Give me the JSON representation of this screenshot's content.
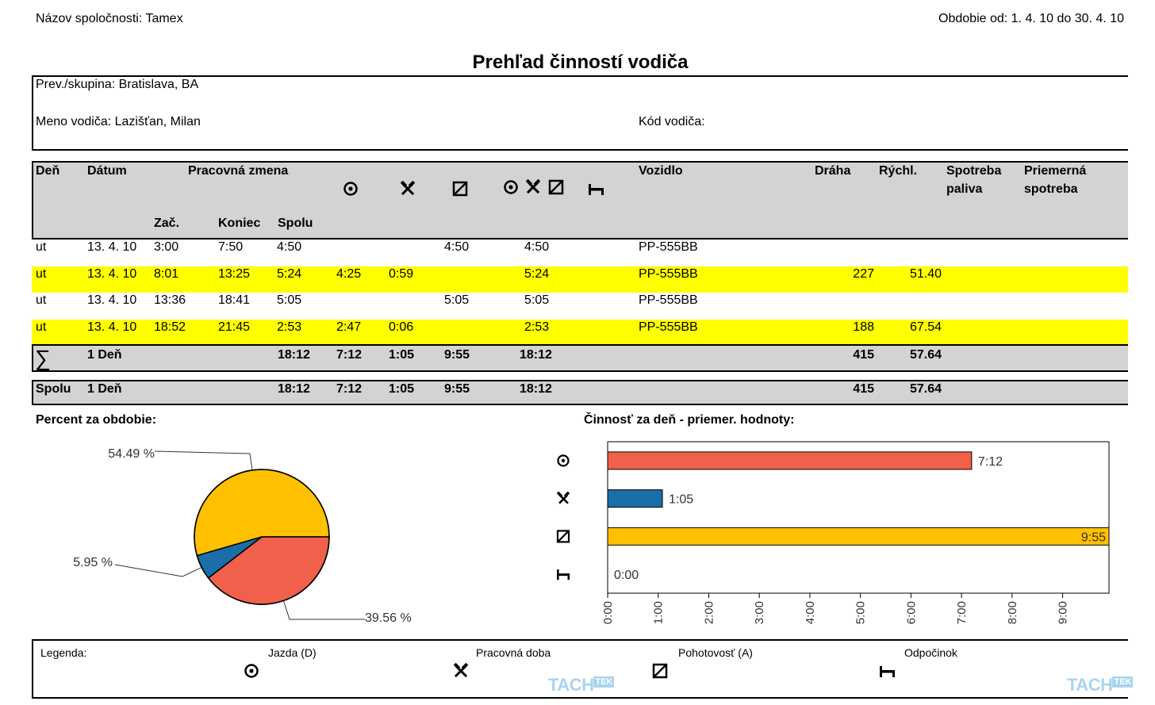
{
  "header": {
    "company": "Názov spoločnosti: Tamex",
    "period": "Obdobie od: 1. 4. 10 do 30. 4. 10",
    "title": "Prehľad činností vodiča"
  },
  "info": {
    "group": "Prev./skupina: Bratislava, BA",
    "driver_name": "Meno vodiča: Lazišťan, Milan",
    "driver_code": "Kód vodiča:"
  },
  "table": {
    "headers": {
      "den": "Deň",
      "datum": "Dátum",
      "shift": "Pracovná zmena",
      "zac": "Zač.",
      "koniec": "Koniec",
      "spolu": "Spolu",
      "vozidlo": "Vozidlo",
      "draha": "Dráha",
      "rychl": "Rýchl.",
      "spotreba_1": "Spotreba",
      "spotreba_2": "paliva",
      "priem_1": "Priemerná",
      "priem_2": "spotreba"
    },
    "rows": [
      {
        "den": "ut",
        "datum": "13. 4. 10",
        "zac": "3:00",
        "koniec": "7:50",
        "spolu": "4:50",
        "drive": "",
        "work": "",
        "avail": "4:50",
        "total": "4:50",
        "vehicle": "PP-555BB",
        "draha": "",
        "rychl": ""
      },
      {
        "den": "ut",
        "datum": "13. 4. 10",
        "zac": "8:01",
        "koniec": "13:25",
        "spolu": "5:24",
        "drive": "4:25",
        "work": "0:59",
        "avail": "",
        "total": "5:24",
        "vehicle": "PP-555BB",
        "draha": "227",
        "rychl": "51.40"
      },
      {
        "den": "ut",
        "datum": "13. 4. 10",
        "zac": "13:36",
        "koniec": "18:41",
        "spolu": "5:05",
        "drive": "",
        "work": "",
        "avail": "5:05",
        "total": "5:05",
        "vehicle": "PP-555BB",
        "draha": "",
        "rychl": ""
      },
      {
        "den": "ut",
        "datum": "13. 4. 10",
        "zac": "18:52",
        "koniec": "21:45",
        "spolu": "2:53",
        "drive": "2:47",
        "work": "0:06",
        "avail": "",
        "total": "2:53",
        "vehicle": "PP-555BB",
        "draha": "188",
        "rychl": "67.54"
      }
    ],
    "sum_row": {
      "symbol": "∑",
      "days": "1 Deň",
      "spolu": "18:12",
      "drive": "7:12",
      "work": "1:05",
      "avail": "9:55",
      "total": "18:12",
      "draha": "415",
      "rychl": "57.64"
    },
    "total_row": {
      "label": "Spolu",
      "days": "1 Deň",
      "spolu": "18:12",
      "drive": "7:12",
      "work": "1:05",
      "avail": "9:55",
      "total": "18:12",
      "draha": "415",
      "rychl": "57.64"
    }
  },
  "charts_titles": {
    "pie": "Percent za obdobie:",
    "bar": "Činnosť za deň - priemer. hodnoty:"
  },
  "chart_data": [
    {
      "type": "pie",
      "title": "Percent za obdobie:",
      "slices": [
        {
          "value": 54.49,
          "label": "54.49 %",
          "color": "#ffc000"
        },
        {
          "value": 5.95,
          "label": "5.95 %",
          "color": "#1b6ea8"
        },
        {
          "value": 39.56,
          "label": "39.56 %",
          "color": "#f0604a"
        }
      ]
    },
    {
      "type": "bar",
      "title": "Činnosť za deň - priemer. hodnoty:",
      "orientation": "horizontal",
      "categories": [
        "drive",
        "work",
        "availability",
        "rest"
      ],
      "values_hours": [
        7.2,
        1.0833,
        9.9167,
        0
      ],
      "labels": [
        "7:12",
        "1:05",
        "9:55",
        "0:00"
      ],
      "colors": [
        "#f0604a",
        "#1b6ea8",
        "#ffc000",
        "#ffffff"
      ],
      "x_ticks": [
        "0:00",
        "1:00",
        "2:00",
        "3:00",
        "4:00",
        "5:00",
        "6:00",
        "7:00",
        "8:00",
        "9:00"
      ],
      "xlim": [
        0,
        9.9167
      ]
    }
  ],
  "legend": {
    "title": "Legenda:",
    "drive": "Jazda (D)",
    "work": "Pracovná doba",
    "avail": "Pohotovosť (A)",
    "rest": "Odpočinok"
  },
  "logo": {
    "tach": "TACH",
    "tek": "TEK"
  }
}
